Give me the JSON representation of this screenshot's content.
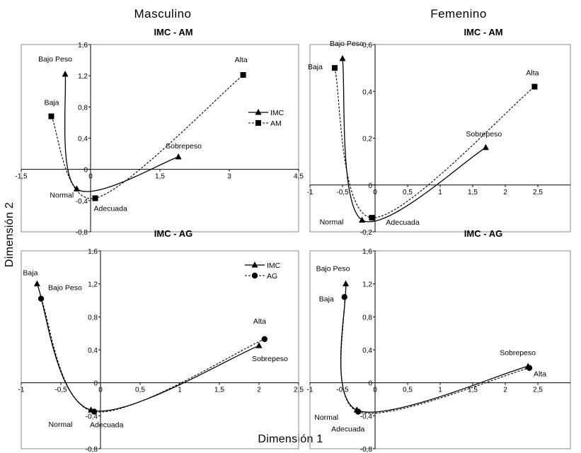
{
  "figure": {
    "col_left_title": "Masculino",
    "col_right_title": "Femenino",
    "ylabel": "Dimensión 2",
    "xlabel": "Dimensión 1"
  },
  "chart_data": [
    {
      "type": "line",
      "title": "IMC - AM",
      "group": "Masculino",
      "xlim": [
        -1.5,
        4.5
      ],
      "ylim": [
        -0.8,
        1.6
      ],
      "xticks": [
        "-1,5",
        "0",
        "1,5",
        "3",
        "4,5"
      ],
      "yticks": [
        "-0,8",
        "-0,4",
        "0",
        "0,4",
        "0,8",
        "1,2",
        "1,6"
      ],
      "grid": false,
      "legend_position": "right",
      "series": [
        {
          "name": "IMC",
          "marker": "triangle",
          "dash": "solid",
          "points": [
            {
              "label": "Bajo Peso",
              "x": -0.55,
              "y": 1.22
            },
            {
              "label": "Normal",
              "x": -0.3,
              "y": -0.25
            },
            {
              "label": "Sobrepeso",
              "x": 1.9,
              "y": 0.16
            }
          ]
        },
        {
          "name": "AM",
          "marker": "square",
          "dash": "dashed",
          "points": [
            {
              "label": "Baja",
              "x": -0.85,
              "y": 0.68
            },
            {
              "label": "Adecuada",
              "x": 0.1,
              "y": -0.37
            },
            {
              "label": "Alta",
              "x": 3.3,
              "y": 1.21
            }
          ]
        }
      ]
    },
    {
      "type": "line",
      "title": "IMC - AM",
      "group": "Femenino",
      "xlim": [
        -1,
        3
      ],
      "ylim": [
        -0.2,
        0.6
      ],
      "xticks": [
        "-1",
        "-0,5",
        "0",
        "0,5",
        "1",
        "1,5",
        "2",
        "2,5"
      ],
      "yticks": [
        "-0,2",
        "0",
        "0,2",
        "0,4",
        "0,6"
      ],
      "grid": false,
      "legend_position": "none",
      "series": [
        {
          "name": "IMC",
          "marker": "triangle",
          "dash": "solid",
          "points": [
            {
              "label": "Bajo Peso",
              "x": -0.5,
              "y": 0.54
            },
            {
              "label": "Normal",
              "x": -0.2,
              "y": -0.15
            },
            {
              "label": "Sobrepeso",
              "x": 1.7,
              "y": 0.16
            }
          ]
        },
        {
          "name": "AM",
          "marker": "square",
          "dash": "dashed",
          "points": [
            {
              "label": "Baja",
              "x": -0.62,
              "y": 0.5
            },
            {
              "label": "Adecuada",
              "x": -0.05,
              "y": -0.14
            },
            {
              "label": "Alta",
              "x": 2.45,
              "y": 0.42
            }
          ]
        }
      ]
    },
    {
      "type": "line",
      "title": "IMC - AG",
      "group": "Masculino",
      "xlim": [
        -1,
        2.5
      ],
      "ylim": [
        -0.8,
        1.6
      ],
      "xticks": [
        "-1",
        "-0,5",
        "0",
        "0,5",
        "1",
        "1,5",
        "2",
        "2,5"
      ],
      "yticks": [
        "-0,8",
        "-0,4",
        "0",
        "0,4",
        "0,8",
        "1,2",
        "1,6"
      ],
      "grid": false,
      "legend_position": "top-right",
      "series": [
        {
          "name": "IMC",
          "marker": "triangle",
          "dash": "solid",
          "points": [
            {
              "label": "Baja",
              "x": -0.8,
              "y": 1.2
            },
            {
              "label": "Normal",
              "x": -0.12,
              "y": -0.33
            },
            {
              "label": "Sobrepeso",
              "x": 2.0,
              "y": 0.45
            }
          ]
        },
        {
          "name": "AG",
          "marker": "circle",
          "dash": "dashed",
          "points": [
            {
              "label": "Bajo Peso",
              "x": -0.75,
              "y": 1.02
            },
            {
              "label": "Adecuada",
              "x": -0.08,
              "y": -0.35
            },
            {
              "label": "Alta",
              "x": 2.07,
              "y": 0.53
            }
          ]
        }
      ]
    },
    {
      "type": "line",
      "title": "IMC - AG",
      "group": "Femenino",
      "xlim": [
        -1,
        3
      ],
      "ylim": [
        -0.8,
        1.6
      ],
      "xticks": [
        "-1",
        "-0,5",
        "0",
        "0,5",
        "1",
        "1,5",
        "2",
        "2,5"
      ],
      "yticks": [
        "-0,8",
        "-0,4",
        "0",
        "0,4",
        "0,8",
        "1,2",
        "1,6"
      ],
      "grid": false,
      "legend_position": "none",
      "series": [
        {
          "name": "IMC",
          "marker": "triangle",
          "dash": "solid",
          "points": [
            {
              "label": "Bajo Peso",
              "x": -0.45,
              "y": 1.2
            },
            {
              "label": "Normal",
              "x": -0.28,
              "y": -0.33
            },
            {
              "label": "Sobrepeso",
              "x": 2.35,
              "y": 0.2
            }
          ]
        },
        {
          "name": "AG",
          "marker": "circle",
          "dash": "dashed",
          "points": [
            {
              "label": "Baja",
              "x": -0.47,
              "y": 1.04
            },
            {
              "label": "Adecuada",
              "x": -0.26,
              "y": -0.35
            },
            {
              "label": "Alta",
              "x": 2.37,
              "y": 0.18
            }
          ]
        }
      ]
    }
  ]
}
